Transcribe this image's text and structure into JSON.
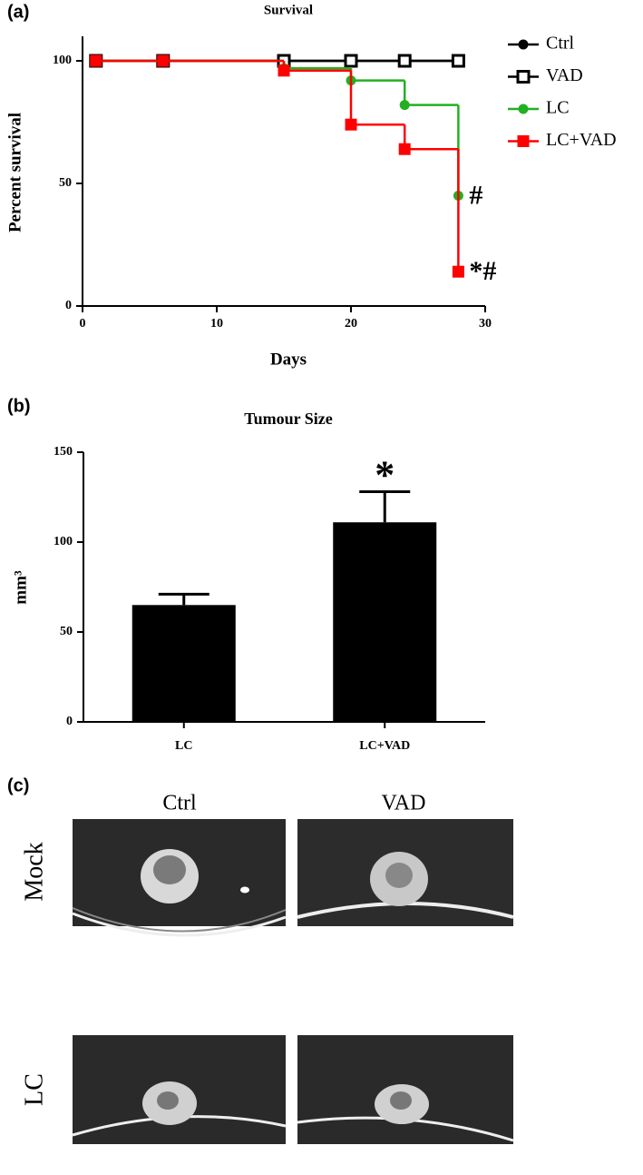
{
  "chart_data": [
    {
      "type": "line",
      "step": true,
      "panel_label": "(a)",
      "title": "Survival",
      "xlabel": "Days",
      "ylabel": "Percent survival",
      "xlim": [
        0,
        30
      ],
      "xticks": [
        0,
        10,
        20,
        30
      ],
      "ylim": [
        0,
        110
      ],
      "yticks": [
        0,
        50,
        100
      ],
      "series": [
        {
          "name": "Ctrl",
          "color": "#000000",
          "marker": "circle",
          "x": [
            1,
            6,
            15,
            20,
            24,
            28
          ],
          "values": [
            100,
            100,
            100,
            100,
            100,
            100
          ]
        },
        {
          "name": "VAD",
          "color": "#000000",
          "marker": "square-open",
          "x": [
            1,
            6,
            15,
            20,
            24,
            28
          ],
          "values": [
            100,
            100,
            100,
            100,
            100,
            100
          ]
        },
        {
          "name": "LC",
          "color": "#22b022",
          "marker": "circle",
          "x": [
            1,
            6,
            15,
            20,
            24,
            28
          ],
          "values": [
            100,
            100,
            97,
            92,
            82,
            45
          ]
        },
        {
          "name": "LC+VAD",
          "color": "#ff0000",
          "marker": "square",
          "x": [
            1,
            6,
            15,
            20,
            24,
            28
          ],
          "values": [
            100,
            100,
            96,
            74,
            64,
            14
          ]
        }
      ],
      "annotations": [
        "#",
        "*#"
      ],
      "legend": "top-right"
    },
    {
      "type": "bar",
      "panel_label": "(b)",
      "title": "Tumour Size",
      "ylabel": "mm³",
      "categories": [
        "LC",
        "LC+VAD"
      ],
      "values": [
        65,
        111
      ],
      "errors": [
        6,
        17
      ],
      "color": "#000000",
      "ylim": [
        0,
        150
      ],
      "yticks": [
        0,
        50,
        100,
        150
      ],
      "annotations": [
        "*"
      ]
    }
  ],
  "panel_c": {
    "label": "(c)",
    "columns": [
      "Ctrl",
      "VAD"
    ],
    "rows": [
      "Mock",
      "LC"
    ]
  }
}
